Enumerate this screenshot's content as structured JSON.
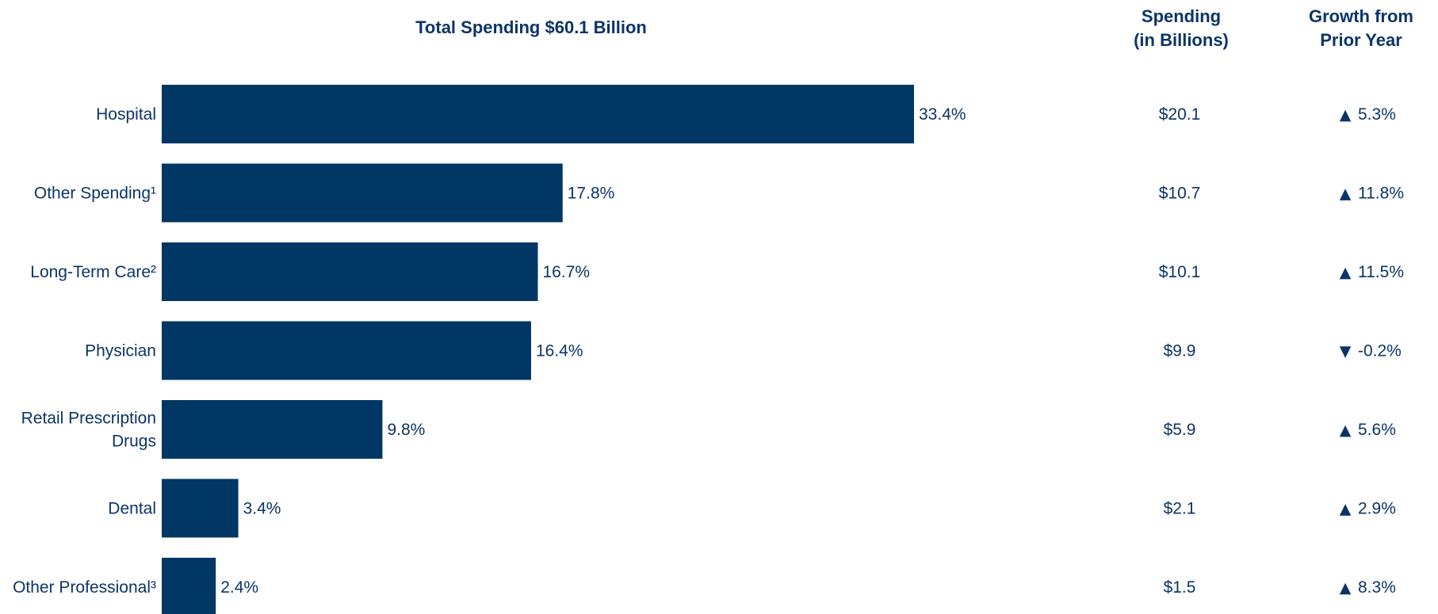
{
  "chart_data": {
    "type": "bar",
    "orientation": "horizontal",
    "title": "Total Spending $60.1 Billion",
    "bar_color": "#003764",
    "text_color": "#0b3566",
    "categories": [
      "Hospital",
      "Other Spending¹",
      "Long-Term Care²",
      "Physician",
      "Retail Prescription Drugs",
      "Dental",
      "Other Professional³"
    ],
    "category_lines": [
      [
        "Hospital"
      ],
      [
        "Other Spending¹"
      ],
      [
        "Long-Term Care²"
      ],
      [
        "Physician"
      ],
      [
        "Retail Prescription",
        "Drugs"
      ],
      [
        "Dental"
      ],
      [
        "Other Professional³"
      ]
    ],
    "values": [
      33.4,
      17.8,
      16.7,
      16.4,
      9.8,
      3.4,
      2.4
    ],
    "value_labels": [
      "33.4%",
      "17.8%",
      "16.7%",
      "16.4%",
      "9.8%",
      "3.4%",
      "2.4%"
    ],
    "xlim": [
      0,
      33.4
    ],
    "grid": false,
    "legend": "none"
  },
  "table": {
    "spending_header": [
      "Spending",
      "(in Billions)"
    ],
    "growth_header": [
      "Growth from",
      "Prior Year"
    ],
    "spending": [
      "$20.1",
      "$10.7",
      "$10.1",
      "$9.9",
      "$5.9",
      "$2.1",
      "$1.5"
    ],
    "growth": [
      {
        "direction": "up",
        "value": "5.3%"
      },
      {
        "direction": "up",
        "value": "11.8%"
      },
      {
        "direction": "up",
        "value": "11.5%"
      },
      {
        "direction": "down",
        "value": "-0.2%"
      },
      {
        "direction": "up",
        "value": "5.6%"
      },
      {
        "direction": "up",
        "value": "2.9%"
      },
      {
        "direction": "up",
        "value": "8.3%"
      }
    ],
    "up_glyph": "▲",
    "down_glyph": "▼"
  }
}
